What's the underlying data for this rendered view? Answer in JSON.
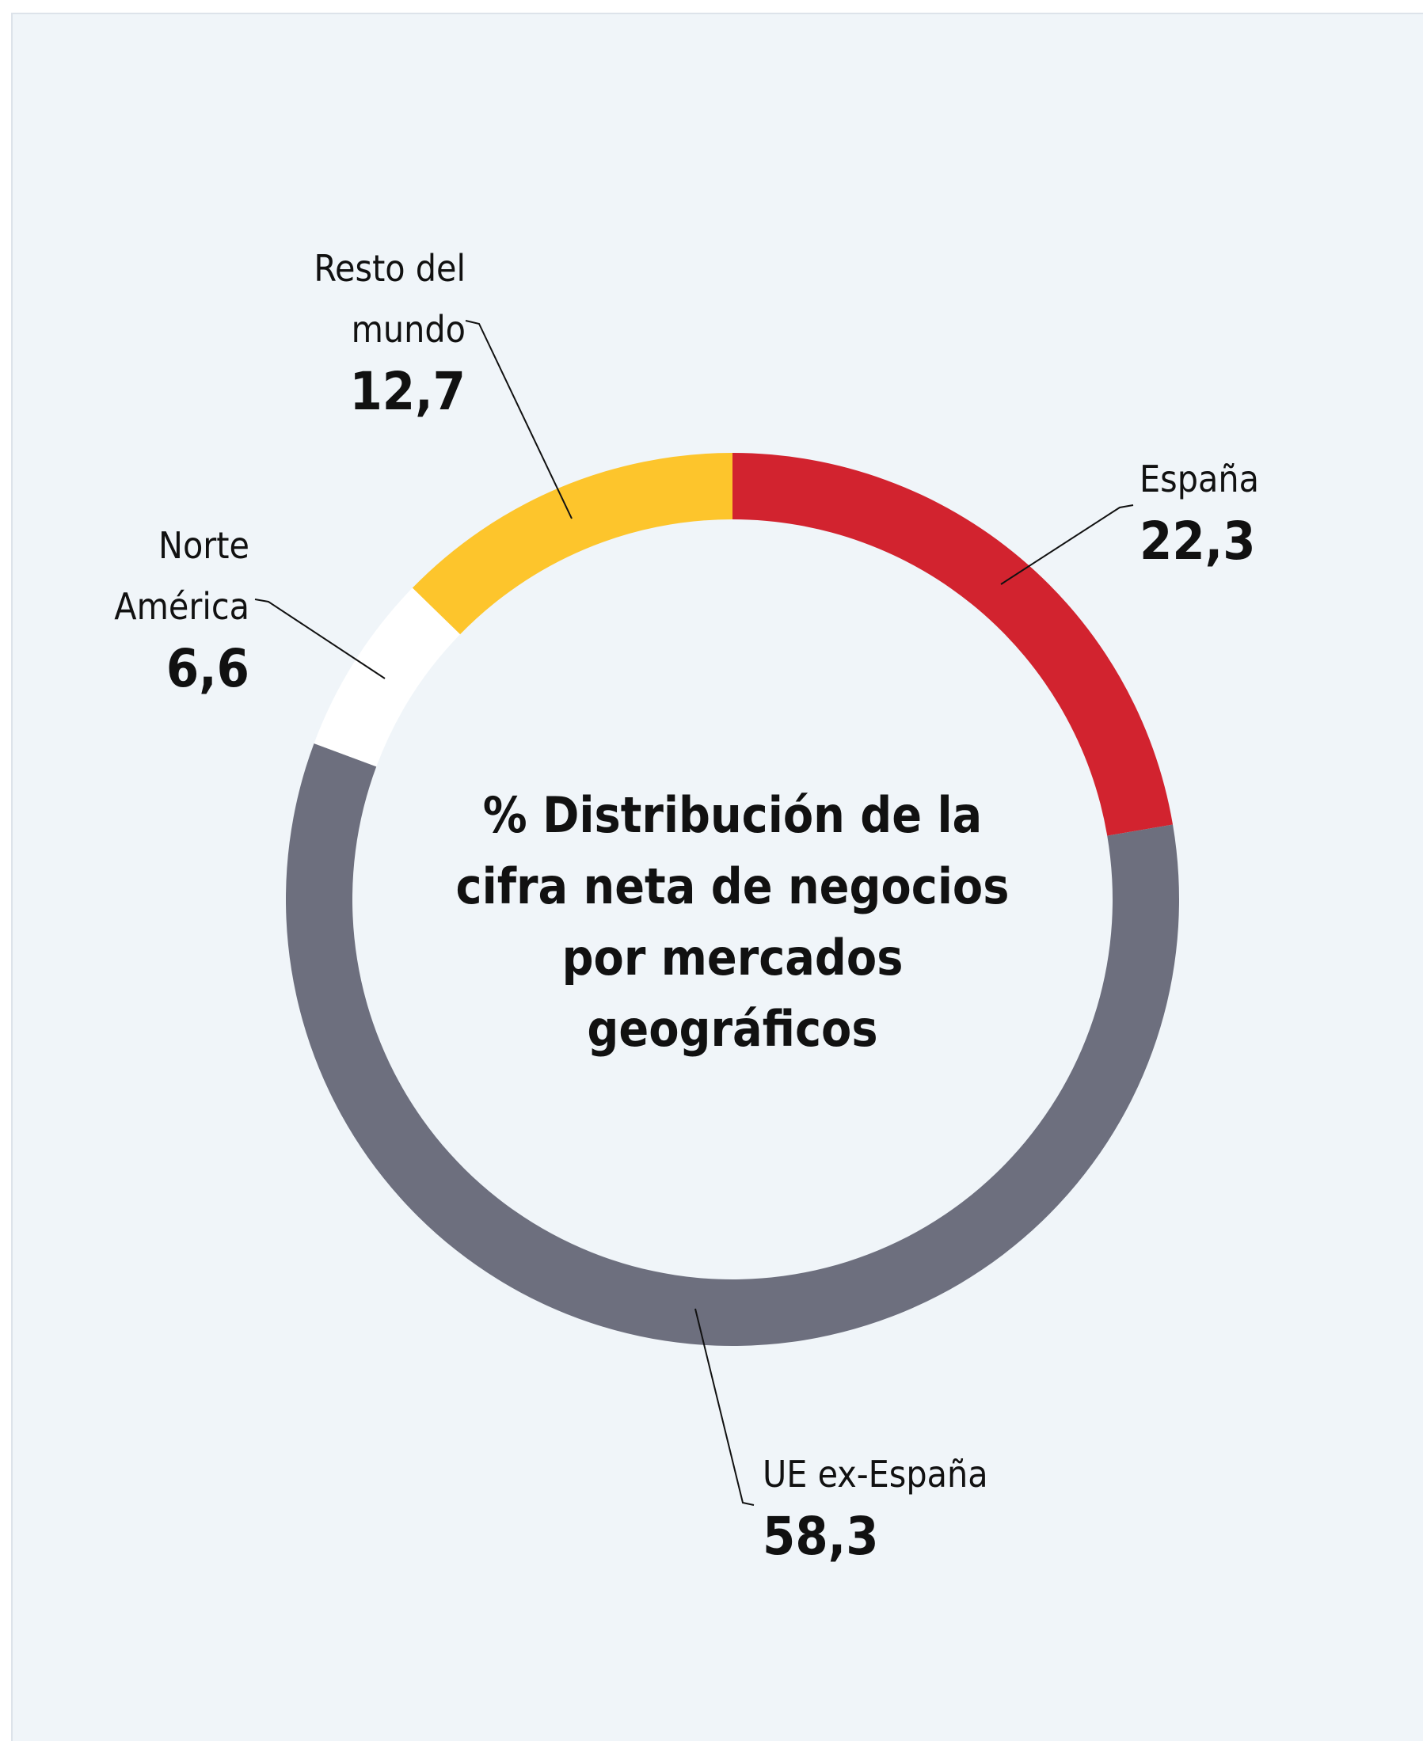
{
  "chart_data": {
    "type": "donut",
    "title": "% Distribución de la cifra neta de negocios por mercados geográficos",
    "categories": [
      "España",
      "UE ex-España",
      "Norte\nAmérica",
      "Resto del\nmundo"
    ],
    "values": [
      22.3,
      58.3,
      6.6,
      12.7
    ],
    "value_labels": [
      "22,3",
      "58,3",
      "6,6",
      "12,7"
    ],
    "colors": [
      "#d2232f",
      "#6d6f7e",
      "#ffffff",
      "#fdc52c"
    ]
  }
}
